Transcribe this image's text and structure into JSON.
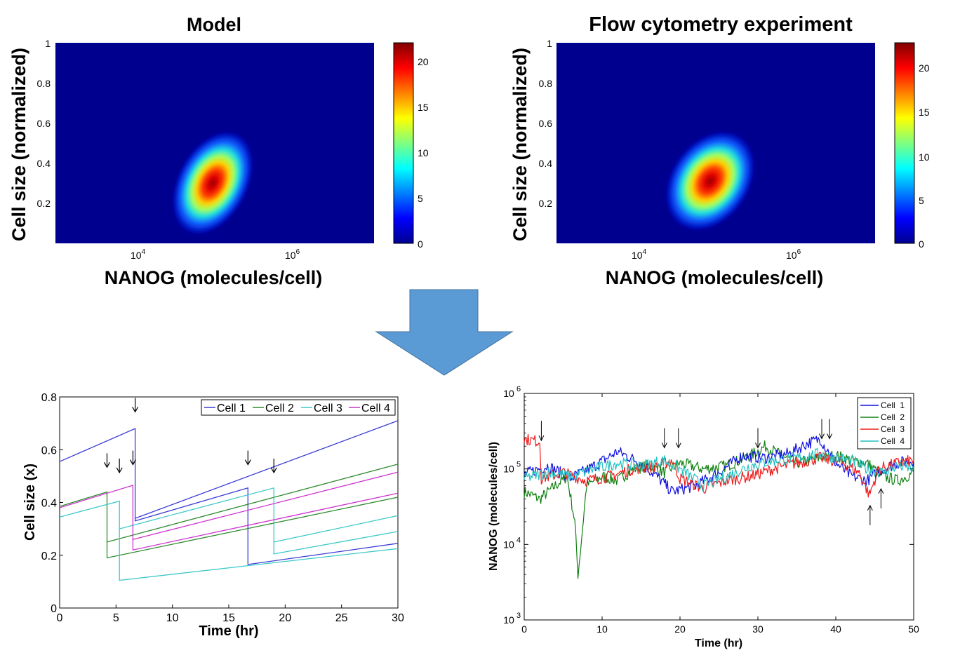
{
  "colors": {
    "cell1": "#3b3bd6",
    "cell2": "#2e8b2e",
    "cell3": "#3ec8c8",
    "cell4": "#cc33cc",
    "ts_cell1": "#1010e0",
    "ts_cell2": "#108010",
    "ts_cell3": "#ee1a1a",
    "ts_cell4": "#20c0c0",
    "arrow": "#5b9bd5",
    "heatmap_bg": "#00008f"
  },
  "chart_data": [
    {
      "type": "heatmap",
      "title": "Model",
      "xlabel": "NANOG (molecules/cell)",
      "ylabel": "Cell size (normalized)",
      "xscale": "log",
      "xticks": [
        "10^4",
        "10^6"
      ],
      "ytick_labels": [
        "0.2",
        "0.4",
        "0.6",
        "0.8",
        "1"
      ],
      "ylim": [
        0,
        1
      ],
      "colorbar": {
        "min": 0,
        "max": 22,
        "ticks": [
          "0",
          "5",
          "10",
          "15",
          "20"
        ]
      },
      "peak": {
        "log10_nanog": 4.95,
        "cell_size": 0.29,
        "count": 22
      }
    },
    {
      "type": "heatmap",
      "title": "Flow cytometry experiment",
      "xlabel": "NANOG (molecules/cell)",
      "ylabel": "Cell size (normalized)",
      "xscale": "log",
      "xticks": [
        "10^4",
        "10^6"
      ],
      "ytick_labels": [
        "0.2",
        "0.4",
        "0.6",
        "0.8",
        "1"
      ],
      "ylim": [
        0,
        1
      ],
      "colorbar": {
        "min": 0,
        "max": 23,
        "ticks": [
          "0",
          "5",
          "10",
          "15",
          "20"
        ]
      },
      "peak": {
        "log10_nanog": 4.9,
        "cell_size": 0.3,
        "count": 23
      }
    },
    {
      "type": "line",
      "title": "",
      "xlabel": "Time (hr)",
      "ylabel": "Cell size (x)",
      "xlim": [
        0,
        30
      ],
      "ylim": [
        0,
        0.8
      ],
      "xticks": [
        "0",
        "5",
        "10",
        "15",
        "20",
        "25",
        "30"
      ],
      "yticks": [
        "0",
        "0.2",
        "0.4",
        "0.6",
        "0.8"
      ],
      "legend_position": "top-right",
      "series": [
        {
          "name": "Cell 1",
          "points": [
            [
              0,
              0.555
            ],
            [
              6.7,
              0.68
            ],
            [
              6.7,
              0.33
            ],
            [
              16.7,
              0.455
            ],
            [
              16.7,
              0.165
            ],
            [
              30,
              0.245
            ]
          ],
          "points2": [
            [
              6.7,
              0.34
            ],
            [
              30,
              0.71
            ]
          ]
        },
        {
          "name": "Cell 2",
          "points": [
            [
              0,
              0.385
            ],
            [
              4.2,
              0.44
            ],
            [
              4.2,
              0.19
            ],
            [
              30,
              0.42
            ]
          ],
          "points2": [
            [
              4.2,
              0.25
            ],
            [
              30,
              0.545
            ]
          ]
        },
        {
          "name": "Cell 3",
          "points": [
            [
              0,
              0.345
            ],
            [
              5.3,
              0.405
            ],
            [
              5.3,
              0.105
            ],
            [
              30,
              0.225
            ]
          ],
          "points2": [
            [
              5.3,
              0.3
            ],
            [
              19,
              0.455
            ],
            [
              19,
              0.205
            ],
            [
              30,
              0.29
            ]
          ],
          "points3": [
            [
              19,
              0.25
            ],
            [
              30,
              0.35
            ]
          ]
        },
        {
          "name": "Cell 4",
          "points": [
            [
              0,
              0.38
            ],
            [
              6.5,
              0.465
            ],
            [
              6.5,
              0.22
            ],
            [
              30,
              0.435
            ]
          ],
          "points2": [
            [
              6.5,
              0.26
            ],
            [
              30,
              0.515
            ]
          ]
        }
      ],
      "division_arrows_x": [
        6.7,
        4.2,
        5.3,
        6.5,
        16.7,
        19
      ]
    },
    {
      "type": "line",
      "title": "",
      "xlabel": "Time (hr)",
      "ylabel": "NANOG (molecules/cell)",
      "xlim": [
        0,
        50
      ],
      "ylim_log10": [
        3,
        6
      ],
      "xticks": [
        "0",
        "10",
        "20",
        "30",
        "40",
        "50"
      ],
      "ytick_exponents": [
        "3",
        "4",
        "5",
        "6"
      ],
      "legend_position": "top-right",
      "series": [
        {
          "name": "Cell  1",
          "points": [
            [
              0,
              85000
            ],
            [
              3,
              110000
            ],
            [
              6,
              75000
            ],
            [
              9,
              110000
            ],
            [
              12,
              170000
            ],
            [
              15,
              120000
            ],
            [
              17,
              80000
            ],
            [
              19,
              50000
            ],
            [
              22,
              60000
            ],
            [
              25,
              90000
            ],
            [
              28,
              150000
            ],
            [
              31,
              140000
            ],
            [
              34,
              160000
            ],
            [
              36,
              210000
            ],
            [
              38,
              250000
            ],
            [
              40,
              120000
            ],
            [
              42,
              80000
            ],
            [
              44,
              70000
            ],
            [
              46,
              100000
            ],
            [
              48,
              120000
            ],
            [
              50,
              130000
            ]
          ]
        },
        {
          "name": "Cell  2",
          "points": [
            [
              0,
              50000
            ],
            [
              2,
              40000
            ],
            [
              4,
              60000
            ],
            [
              5.5,
              80000
            ],
            [
              6.5,
              20000
            ],
            [
              6.9,
              4000
            ],
            [
              7.2,
              8000
            ],
            [
              8,
              60000
            ],
            [
              10,
              80000
            ],
            [
              12,
              70000
            ],
            [
              14,
              100000
            ],
            [
              16,
              110000
            ],
            [
              18,
              90000
            ],
            [
              20,
              120000
            ],
            [
              23,
              100000
            ],
            [
              26,
              110000
            ],
            [
              29,
              150000
            ],
            [
              31,
              200000
            ],
            [
              33,
              150000
            ],
            [
              35,
              120000
            ],
            [
              38,
              140000
            ],
            [
              40,
              150000
            ],
            [
              42,
              130000
            ],
            [
              44,
              120000
            ],
            [
              46,
              80000
            ],
            [
              48,
              70000
            ],
            [
              50,
              90000
            ]
          ]
        },
        {
          "name": "Cell  3",
          "points": [
            [
              0,
              250000
            ],
            [
              2,
              230000
            ],
            [
              2.2,
              75000
            ],
            [
              5,
              90000
            ],
            [
              8,
              70000
            ],
            [
              11,
              80000
            ],
            [
              14,
              100000
            ],
            [
              17,
              110000
            ],
            [
              19,
              130000
            ],
            [
              20,
              75000
            ],
            [
              23,
              55000
            ],
            [
              26,
              70000
            ],
            [
              29,
              80000
            ],
            [
              32,
              100000
            ],
            [
              35,
              120000
            ],
            [
              38,
              140000
            ],
            [
              41,
              120000
            ],
            [
              43,
              90000
            ],
            [
              44.3,
              45000
            ],
            [
              45.5,
              100000
            ],
            [
              48,
              120000
            ],
            [
              50,
              130000
            ]
          ]
        },
        {
          "name": "Cell  4",
          "points": [
            [
              0,
              75000
            ],
            [
              3,
              90000
            ],
            [
              6,
              80000
            ],
            [
              9,
              100000
            ],
            [
              12,
              120000
            ],
            [
              15,
              110000
            ],
            [
              18,
              130000
            ],
            [
              20,
              100000
            ],
            [
              23,
              60000
            ],
            [
              26,
              80000
            ],
            [
              29,
              110000
            ],
            [
              32,
              130000
            ],
            [
              35,
              140000
            ],
            [
              38,
              160000
            ],
            [
              40,
              140000
            ],
            [
              42,
              130000
            ],
            [
              44,
              100000
            ],
            [
              46,
              90000
            ],
            [
              48,
              110000
            ],
            [
              50,
              100000
            ]
          ]
        }
      ],
      "division_arrows": [
        {
          "x": 2.2,
          "dir": "down"
        },
        {
          "x": 18,
          "dir": "down"
        },
        {
          "x": 19.8,
          "dir": "down"
        },
        {
          "x": 30,
          "dir": "down"
        },
        {
          "x": 38.2,
          "dir": "down"
        },
        {
          "x": 39.2,
          "dir": "down"
        },
        {
          "x": 44.4,
          "dir": "up"
        },
        {
          "x": 45.8,
          "dir": "up"
        }
      ]
    }
  ]
}
